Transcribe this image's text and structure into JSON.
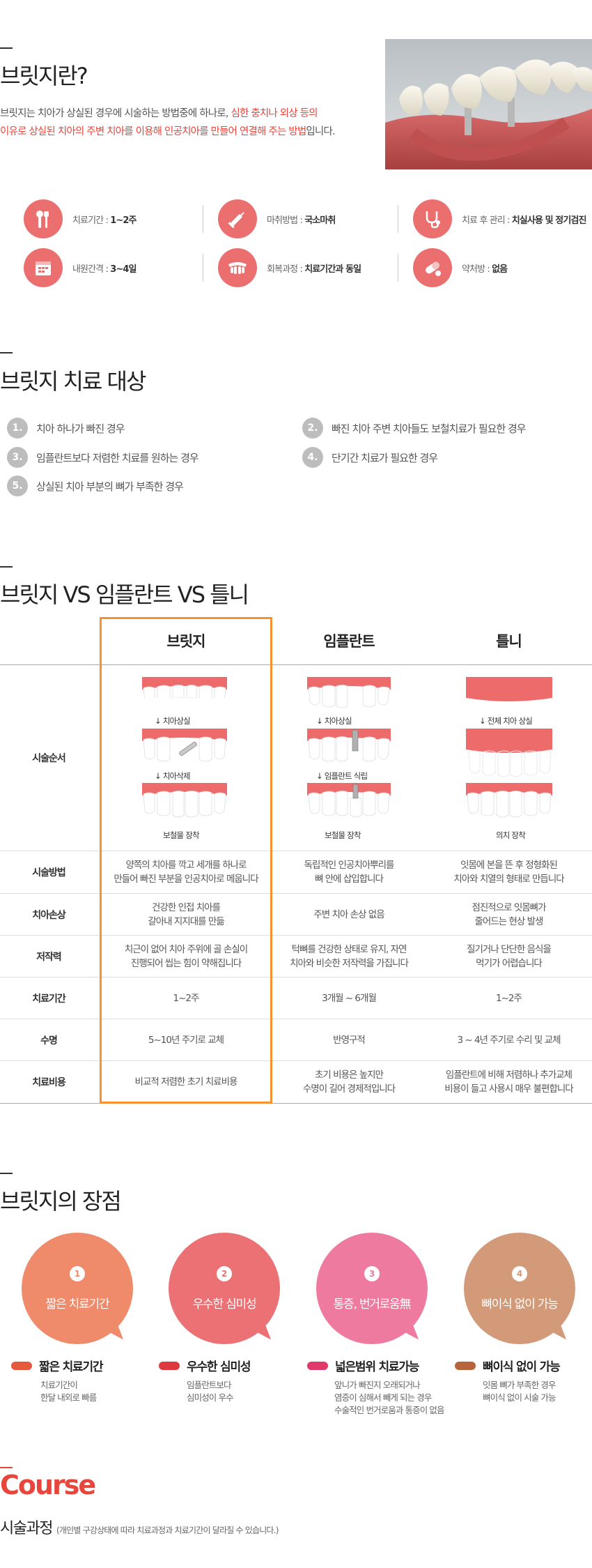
{
  "section_what": {
    "title": "브릿지란?",
    "intro_plain_1": "브릿지는 치아가 상실된 경우에 시술하는 방법중에 하나로, ",
    "intro_highlight_1": "심한 충치나 외상 등의",
    "intro_highlight_2": "이유로 상실된 치아의 주변 치아를 이용해 인공치아를 만들어 연결해 주는 방법",
    "intro_plain_2": "입니다.",
    "info_items": [
      {
        "icon": "tool-icon",
        "label": "치료기간 : ",
        "value": "1~2주"
      },
      {
        "icon": "syringe-icon",
        "label": "마취방법 : ",
        "value": "국소마취"
      },
      {
        "icon": "stethoscope-icon",
        "label": "치료 후 관리 : ",
        "value": "치실사용 및 정기검진"
      },
      {
        "icon": "calendar-icon",
        "label": "내원간격 : ",
        "value": "3~4일"
      },
      {
        "icon": "teeth-icon",
        "label": "회복과정 : ",
        "value": "치료기간과 동일"
      },
      {
        "icon": "pill-icon",
        "label": "약처방 : ",
        "value": "없음"
      }
    ]
  },
  "section_target": {
    "title": "브릿지 치료 대상",
    "items": [
      {
        "num": "1.",
        "text": "치아 하나가 빠진 경우"
      },
      {
        "num": "2.",
        "text": "빠진 치아 주변 치아들도 보철치료가 필요한 경우"
      },
      {
        "num": "3.",
        "text": "임플란트보다 저렴한 치료를 원하는 경우"
      },
      {
        "num": "4.",
        "text": "단기간 치료가 필요한 경우"
      },
      {
        "num": "5.",
        "text": "상실된 치아 부분의 뼈가 부족한 경우"
      }
    ]
  },
  "section_compare": {
    "title": "브릿지 VS 임플란트 VS 틀니",
    "columns": [
      "브릿지",
      "임플란트",
      "틀니"
    ],
    "procedure_label": "시술순서",
    "procedure_captions": {
      "bridge": [
        "↓  치아상실",
        "↓  치아삭제",
        "보철물 장착"
      ],
      "implant": [
        "↓  치아상실",
        "↓  임플란트 식립",
        "보철물 장착"
      ],
      "denture": [
        "↓  전체 치아 상실",
        "의치 장착"
      ]
    },
    "rows": [
      {
        "label": "시술방법",
        "cells": [
          "양쪽의 치아를 깍고 세개를 하나로\n만들어 빠진 부분을 인공치아로 메웁니다",
          "독립적인 인공치아뿌리를\n뼈 안에 삽입합니다",
          "잇몸에 본을 뜬 후 정형화된\n치아와 치열의 형태로 만듭니다"
        ]
      },
      {
        "label": "치아손상",
        "cells": [
          "건강한 인접 치아를\n갈아내 지지대를 만듦",
          "주변 치아 손상 없음",
          "점진적으로 잇몸뼈가\n줄어드는 현상 발생"
        ]
      },
      {
        "label": "저작력",
        "cells": [
          "치근이 없어 치아 주위에 골 손실이\n진행되어 씹는 힘이 약해집니다",
          "턱뼈를 건강한 상태로 유지, 자연\n치아와 비슷한 저작력을 가집니다",
          "질기거나 단단한 음식을\n먹기가 어렵습니다"
        ]
      },
      {
        "label": "치료기간",
        "cells": [
          "1~2주",
          "3개월 ~ 6개월",
          "1~2주"
        ]
      },
      {
        "label": "수명",
        "cells": [
          "5~10년 주기로 교체",
          "반영구적",
          "3 ~ 4년 주기로 수리 및 교체"
        ]
      },
      {
        "label": "치료비용",
        "cells": [
          "비교적 저렴한 초기 치료비용",
          "초기 비용은 높지만\n수명이 길어 경제적입니다",
          "임플란트에 비해 저렴하나 추가교체\n비용이 들고 사용시 매우 불편합니다"
        ]
      }
    ]
  },
  "section_advantages": {
    "title": "브릿지의 장점",
    "items": [
      {
        "num": "1",
        "bubble": "짧은 치료기간",
        "color": "#ef8a6a",
        "pill_color": "#e55a3c",
        "title": "짧은 치료기간",
        "desc": [
          "치료기간이",
          "한달 내외로 빠름"
        ]
      },
      {
        "num": "2",
        "bubble": "우수한 심미성",
        "color": "#eb7175",
        "pill_color": "#dd3a3f",
        "title": "우수한 심미성",
        "desc": [
          "임플란트보다",
          "심미성이 우수"
        ]
      },
      {
        "num": "3",
        "bubble": "통증, 번거로움無",
        "color": "#ef7aa0",
        "pill_color": "#e03a6a",
        "title": "넓은범위 치료가능",
        "desc": [
          "앞니가 빠진지 오래되거나",
          "염증이 심해서 빼게 되는 경우",
          "수술적인 번거로움과 통증이 없음"
        ]
      },
      {
        "num": "4",
        "bubble": "뼈이식 없이 가능",
        "color": "#d29a79",
        "pill_color": "#b5643c",
        "title": "뼈이식 없이 가능",
        "desc": [
          "잇몸 뼈가 부족한 경우",
          "뼈이식 없이 시술 가능"
        ]
      }
    ]
  },
  "section_course": {
    "title": "Course",
    "subtitle": "시술과정",
    "note": "(개인별 구강상태에 따라 치료과정과 치료기간이 달라질 수 있습니다.)"
  },
  "colors": {
    "accent": "#e8453c",
    "icon_bg": "#ec6f70",
    "highlight_border": "#f5922f",
    "gum": "#ee6b6b"
  }
}
